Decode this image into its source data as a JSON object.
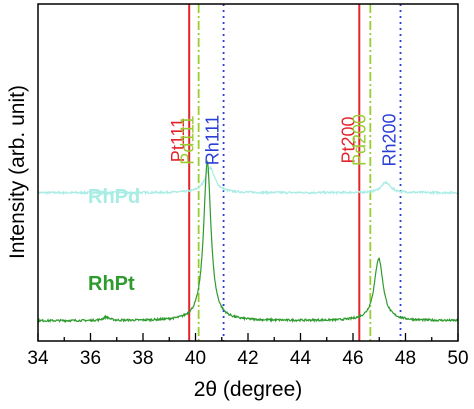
{
  "chart_data": {
    "type": "line",
    "title": "",
    "xlabel": "2θ (degree)",
    "ylabel": "Intensity (arb. unit)",
    "xlim": [
      34,
      50
    ],
    "x_ticks": [
      "34",
      "36",
      "38",
      "40",
      "42",
      "44",
      "46",
      "48",
      "50"
    ],
    "y_ticks": [],
    "ylim": [
      0,
      1
    ],
    "grid": false,
    "reference_lines": [
      {
        "label": "Pt111",
        "x": 39.76,
        "color": "#e3242b",
        "style": "solid"
      },
      {
        "label": "Pd111",
        "x": 40.12,
        "color": "#9acd32",
        "style": "dashdot"
      },
      {
        "label": "Rh111",
        "x": 41.07,
        "color": "#2a3fd6",
        "style": "dotted"
      },
      {
        "label": "Pt200",
        "x": 46.24,
        "color": "#e3242b",
        "style": "solid"
      },
      {
        "label": "Pd200",
        "x": 46.66,
        "color": "#9acd32",
        "style": "dashdot"
      },
      {
        "label": "Rh200",
        "x": 47.81,
        "color": "#2a3fd6",
        "style": "dotted"
      }
    ],
    "series": [
      {
        "name": "RhPd",
        "color": "#a8ece4",
        "baseline": 0.44,
        "peaks": [
          {
            "x": 40.55,
            "height": 0.075,
            "width": 0.22
          },
          {
            "x": 47.25,
            "height": 0.03,
            "width": 0.22
          }
        ]
      },
      {
        "name": "RhPt",
        "color": "#2e9b2e",
        "baseline": 0.06,
        "peaks": [
          {
            "x": 40.45,
            "height": 0.47,
            "width": 0.17
          },
          {
            "x": 46.98,
            "height": 0.185,
            "width": 0.2
          },
          {
            "x": 36.6,
            "height": 0.01,
            "width": 0.15
          }
        ]
      }
    ]
  }
}
